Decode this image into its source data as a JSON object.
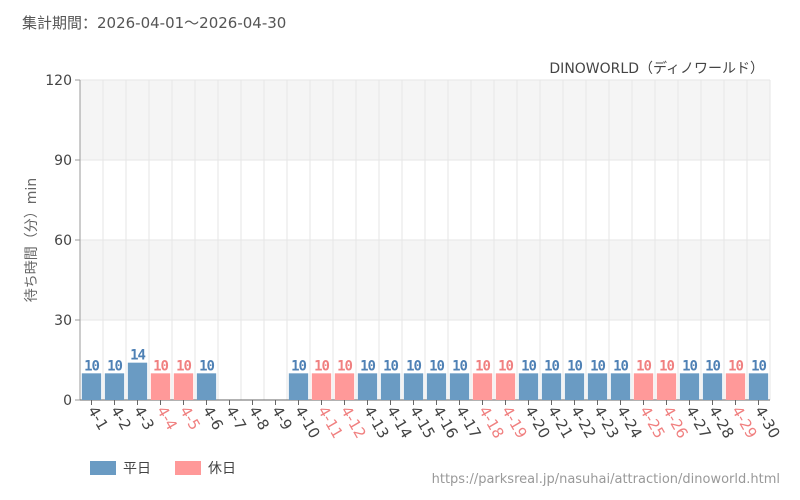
{
  "header": {
    "period_text": "集計期間：2026-04-01～2026-04-30"
  },
  "footer": {
    "url": "https://parksreal.jp/nasuhai/attraction/dinoworld.html"
  },
  "colors": {
    "weekday": "#6a9bc3",
    "holiday": "#ff9999",
    "weekday_text": "#4f81b5",
    "holiday_text": "#f08080",
    "band": "#f5f5f5",
    "grid": "#e6e6e6",
    "axis": "#999999"
  },
  "chart_data": {
    "type": "bar",
    "title": "DINOWORLD（ディノワールド）",
    "ylabel": "待ち時間（分）min",
    "xlabel": "",
    "ylim": [
      0,
      120
    ],
    "yticks": [
      0,
      30,
      60,
      90,
      120
    ],
    "grid": true,
    "legend_position": "bottom-left",
    "legend": [
      {
        "key": "weekday",
        "label": "平日"
      },
      {
        "key": "holiday",
        "label": "休日"
      }
    ],
    "categories": [
      "4-1",
      "4-2",
      "4-3",
      "4-4",
      "4-5",
      "4-6",
      "4-7",
      "4-8",
      "4-9",
      "4-10",
      "4-11",
      "4-12",
      "4-13",
      "4-14",
      "4-15",
      "4-16",
      "4-17",
      "4-18",
      "4-19",
      "4-20",
      "4-21",
      "4-22",
      "4-23",
      "4-24",
      "4-25",
      "4-26",
      "4-27",
      "4-28",
      "4-29",
      "4-30"
    ],
    "values": [
      10,
      10,
      14,
      10,
      10,
      10,
      null,
      null,
      null,
      10,
      10,
      10,
      10,
      10,
      10,
      10,
      10,
      10,
      10,
      10,
      10,
      10,
      10,
      10,
      10,
      10,
      10,
      10,
      10,
      10
    ],
    "day_type": [
      "weekday",
      "weekday",
      "weekday",
      "holiday",
      "holiday",
      "weekday",
      "weekday",
      "weekday",
      "weekday",
      "weekday",
      "holiday",
      "holiday",
      "weekday",
      "weekday",
      "weekday",
      "weekday",
      "weekday",
      "holiday",
      "holiday",
      "weekday",
      "weekday",
      "weekday",
      "weekday",
      "weekday",
      "holiday",
      "holiday",
      "weekday",
      "weekday",
      "holiday",
      "weekday"
    ]
  }
}
